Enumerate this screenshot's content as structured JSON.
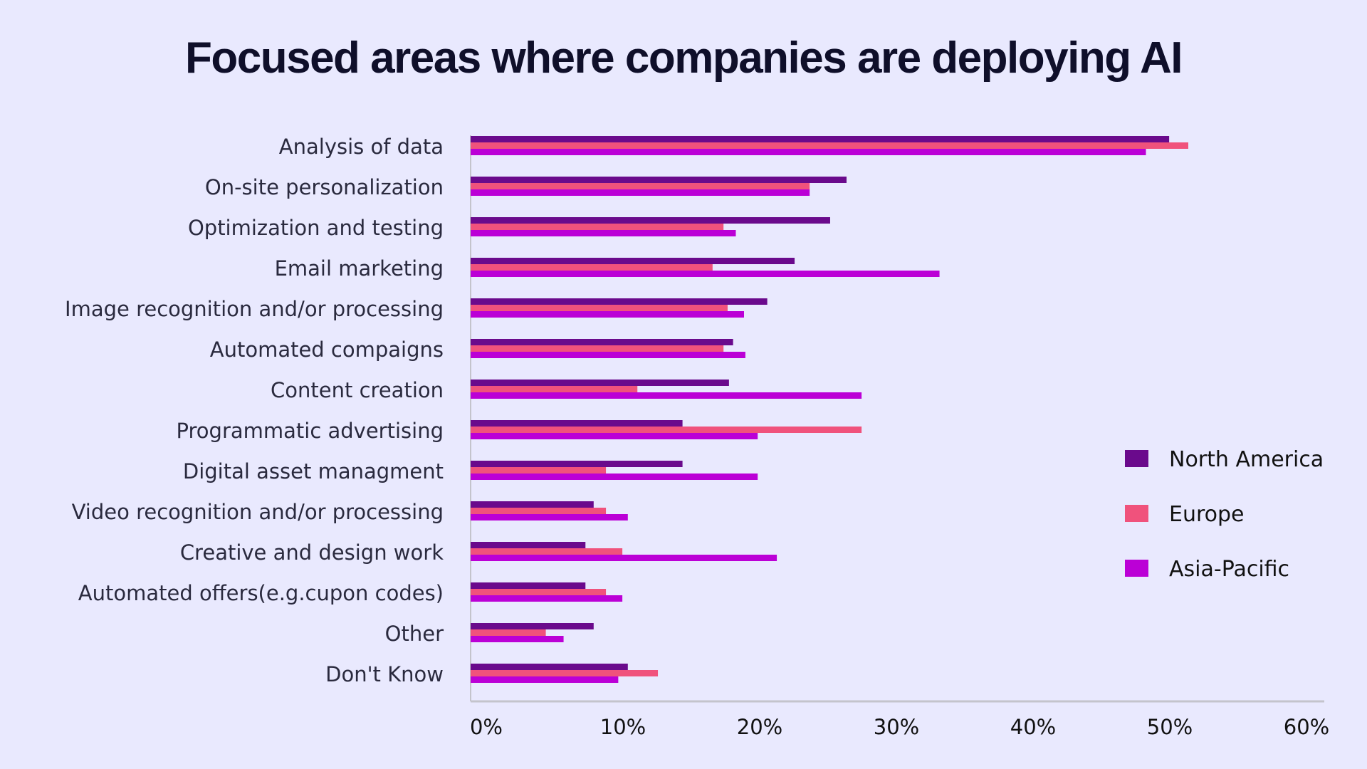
{
  "chart_data": {
    "type": "bar",
    "orientation": "horizontal",
    "title": "Focused areas where companies are deploying AI",
    "xlabel": "",
    "ylabel": "",
    "xlim": [
      0,
      60
    ],
    "x_ticks": [
      "0%",
      "10%",
      "20%",
      "30%",
      "40%",
      "50%",
      "60%"
    ],
    "grid": false,
    "legend_position": "right",
    "categories": [
      "Analysis of data",
      "On-site personalization",
      "Optimization and testing",
      "Email marketing",
      "Image recognition and/or processing",
      "Automated compaigns",
      "Content creation",
      "Programmatic advertising",
      "Digital asset managment",
      "Video recognition and/or processing",
      "Creative and design work",
      "Automated offers(e.g.cupon codes)",
      "Other",
      "Don't Know"
    ],
    "series": [
      {
        "name": "North America",
        "color": "#6a0a8c",
        "values": [
          51.1,
          27.5,
          26.3,
          23.7,
          21.7,
          19.2,
          18.9,
          15.5,
          15.5,
          9.0,
          8.4,
          8.4,
          9.0,
          11.5
        ]
      },
      {
        "name": "Europe",
        "color": "#f0527c",
        "values": [
          52.5,
          24.8,
          18.5,
          17.7,
          18.8,
          18.5,
          12.2,
          28.6,
          9.9,
          9.9,
          11.1,
          9.9,
          5.5,
          13.7
        ]
      },
      {
        "name": "Asia-Pacific",
        "color": "#bb00d6",
        "values": [
          49.4,
          24.8,
          19.4,
          34.3,
          20.0,
          20.1,
          28.6,
          21.0,
          21.0,
          11.5,
          22.4,
          11.1,
          6.8,
          10.8
        ]
      }
    ]
  }
}
